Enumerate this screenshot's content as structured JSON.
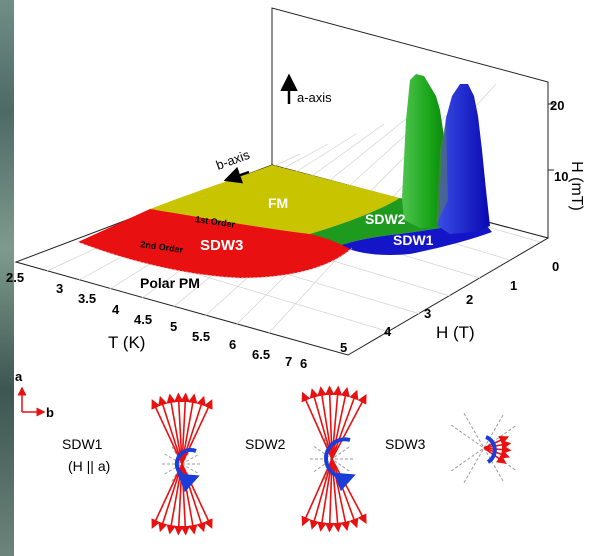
{
  "phase_diagram": {
    "axis_labels": {
      "t_axis": "T (K)",
      "h_axis": "H (T)",
      "hz_axis": "H (mT)"
    },
    "t_ticks": [
      "2.5",
      "3",
      "3.5",
      "4",
      "4.5",
      "5",
      "5.5",
      "6",
      "6.5",
      "7"
    ],
    "h_ticks": [
      "0",
      "1",
      "2",
      "3",
      "4",
      "5",
      "6"
    ],
    "hz_ticks": [
      "10",
      "20"
    ],
    "regions": {
      "fm": "FM",
      "sdw1": "SDW1",
      "sdw2": "SDW2",
      "sdw3": "SDW3",
      "polar_pm": "Polar PM"
    },
    "transitions": {
      "first_order": "1st Order",
      "second_order": "2nd Order"
    },
    "crystal_axes": {
      "a_axis": "a-axis",
      "b_axis": "b-axis"
    },
    "colors": {
      "fm": "#c8c400",
      "sdw1": "#1414c8",
      "sdw2": "#1e9a1e",
      "sdw3": "#e81010",
      "spin_arrow": "#e81010",
      "rotation_arrow": "#1a3cd8"
    }
  },
  "spin_textures": {
    "axis_a": "a",
    "axis_b": "b",
    "sdw1_label": "SDW1",
    "sdw1_condition": "(H || a)",
    "sdw2_label": "SDW2",
    "sdw3_label": "SDW3"
  }
}
